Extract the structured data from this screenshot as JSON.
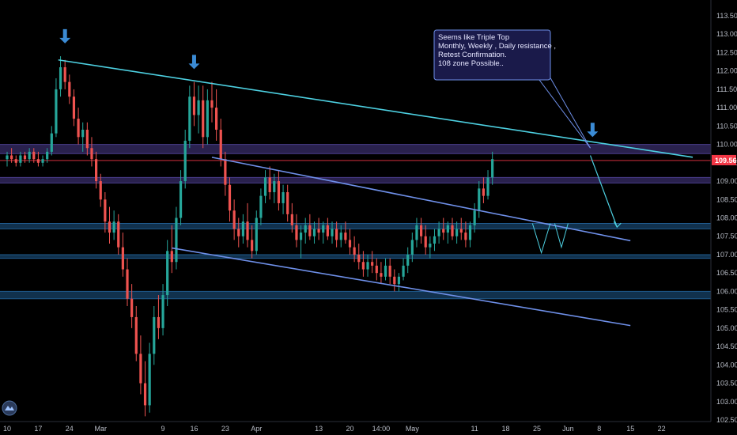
{
  "chart_data": {
    "type": "candlestick",
    "instrument_price_axis": {
      "ylim": [
        102.5,
        113.75
      ],
      "ticks": [
        "113.500",
        "113.000",
        "112.500",
        "112.000",
        "111.500",
        "111.000",
        "110.500",
        "110.000",
        "109.500",
        "109.000",
        "108.500",
        "108.000",
        "107.500",
        "107.000",
        "106.500",
        "106.000",
        "105.500",
        "105.000",
        "104.500",
        "104.000",
        "103.500",
        "103.000",
        "102.500"
      ],
      "tick_values": [
        113.5,
        113.0,
        112.5,
        112.0,
        111.5,
        111.0,
        110.5,
        110.0,
        109.5,
        109.0,
        108.5,
        108.0,
        107.5,
        107.0,
        106.5,
        106.0,
        105.5,
        105.0,
        104.5,
        104.0,
        103.5,
        103.0,
        102.5
      ]
    },
    "time_axis": {
      "labels": [
        "10",
        "17",
        "24",
        "Mar",
        "9",
        "16",
        "23",
        "Apr",
        "13",
        "20",
        "14:00",
        "May",
        "11",
        "18",
        "25",
        "Jun",
        "8",
        "15",
        "22"
      ],
      "bar_index": [
        0,
        7,
        14,
        21,
        35,
        42,
        49,
        56,
        70,
        77,
        84,
        91,
        105,
        112,
        119,
        126,
        133,
        140,
        147
      ],
      "bar_range": [
        0,
        153
      ]
    },
    "current_price": {
      "value": 109.562,
      "label": "109.562",
      "color": "#f23645"
    },
    "candles": [
      [
        0,
        109.6,
        109.8,
        109.4,
        109.7
      ],
      [
        1,
        109.7,
        109.9,
        109.5,
        109.6
      ],
      [
        2,
        109.6,
        109.7,
        109.4,
        109.5
      ],
      [
        3,
        109.5,
        109.8,
        109.4,
        109.7
      ],
      [
        4,
        109.7,
        109.8,
        109.5,
        109.6
      ],
      [
        5,
        109.6,
        109.9,
        109.5,
        109.8
      ],
      [
        6,
        109.8,
        109.9,
        109.5,
        109.6
      ],
      [
        7,
        109.6,
        109.8,
        109.4,
        109.5
      ],
      [
        8,
        109.5,
        109.7,
        109.4,
        109.6
      ],
      [
        9,
        109.6,
        109.9,
        109.5,
        109.8
      ],
      [
        10,
        109.8,
        110.5,
        109.7,
        110.3
      ],
      [
        11,
        110.3,
        111.8,
        110.2,
        111.5
      ],
      [
        12,
        111.5,
        112.4,
        111.3,
        112.1
      ],
      [
        13,
        112.1,
        112.3,
        111.5,
        111.7
      ],
      [
        14,
        111.7,
        111.9,
        111.1,
        111.3
      ],
      [
        15,
        111.3,
        111.5,
        110.5,
        110.7
      ],
      [
        16,
        110.7,
        111.0,
        110.0,
        110.2
      ],
      [
        17,
        110.2,
        110.6,
        109.8,
        110.4
      ],
      [
        18,
        110.4,
        110.6,
        109.7,
        109.9
      ],
      [
        19,
        109.9,
        110.2,
        109.4,
        109.6
      ],
      [
        20,
        109.6,
        109.8,
        108.8,
        109.0
      ],
      [
        21,
        109.0,
        109.2,
        108.3,
        108.5
      ],
      [
        22,
        108.5,
        108.7,
        107.6,
        107.9
      ],
      [
        23,
        107.9,
        108.3,
        107.3,
        107.6
      ],
      [
        24,
        107.6,
        108.2,
        107.4,
        107.9
      ],
      [
        25,
        107.9,
        108.1,
        107.0,
        107.2
      ],
      [
        26,
        107.2,
        107.6,
        106.4,
        106.6
      ],
      [
        27,
        106.6,
        106.9,
        105.6,
        105.8
      ],
      [
        28,
        105.8,
        106.2,
        105.0,
        105.3
      ],
      [
        29,
        105.3,
        105.6,
        104.1,
        104.3
      ],
      [
        30,
        104.3,
        104.8,
        103.2,
        103.5
      ],
      [
        31,
        103.5,
        104.1,
        102.6,
        102.9
      ],
      [
        32,
        102.9,
        104.6,
        102.7,
        104.3
      ],
      [
        33,
        104.3,
        105.6,
        104.0,
        105.3
      ],
      [
        34,
        105.3,
        105.9,
        104.7,
        105.0
      ],
      [
        35,
        105.0,
        106.2,
        104.8,
        105.9
      ],
      [
        36,
        105.9,
        107.4,
        105.6,
        107.1
      ],
      [
        37,
        107.1,
        107.8,
        106.5,
        106.8
      ],
      [
        38,
        106.8,
        108.3,
        106.6,
        108.0
      ],
      [
        39,
        108.0,
        109.3,
        107.8,
        109.0
      ],
      [
        40,
        109.0,
        110.4,
        108.8,
        110.1
      ],
      [
        41,
        110.1,
        111.6,
        109.9,
        111.3
      ],
      [
        42,
        111.3,
        111.7,
        110.5,
        110.8
      ],
      [
        43,
        110.8,
        111.6,
        110.3,
        111.2
      ],
      [
        44,
        111.2,
        111.6,
        109.9,
        110.2
      ],
      [
        45,
        110.2,
        111.5,
        110.0,
        111.2
      ],
      [
        46,
        111.2,
        111.7,
        110.6,
        111.0
      ],
      [
        47,
        111.0,
        111.5,
        110.1,
        110.4
      ],
      [
        48,
        110.4,
        110.7,
        109.4,
        109.6
      ],
      [
        49,
        109.6,
        109.8,
        108.6,
        108.9
      ],
      [
        50,
        108.9,
        109.1,
        107.9,
        108.2
      ],
      [
        51,
        108.2,
        108.5,
        107.4,
        107.7
      ],
      [
        52,
        107.7,
        108.0,
        107.2,
        107.5
      ],
      [
        53,
        107.5,
        108.1,
        107.3,
        107.9
      ],
      [
        54,
        107.9,
        108.4,
        107.2,
        107.4
      ],
      [
        55,
        107.4,
        107.8,
        106.9,
        107.1
      ],
      [
        56,
        107.1,
        108.2,
        107.0,
        108.0
      ],
      [
        57,
        108.0,
        108.8,
        107.8,
        108.6
      ],
      [
        58,
        108.6,
        109.3,
        108.4,
        109.1
      ],
      [
        59,
        109.1,
        109.4,
        108.5,
        108.7
      ],
      [
        60,
        108.7,
        109.2,
        108.4,
        109.0
      ],
      [
        61,
        109.0,
        109.3,
        108.2,
        108.4
      ],
      [
        62,
        108.4,
        108.9,
        108.1,
        108.7
      ],
      [
        63,
        108.7,
        108.9,
        107.9,
        108.1
      ],
      [
        64,
        108.1,
        108.4,
        107.6,
        107.8
      ],
      [
        65,
        107.8,
        108.1,
        107.2,
        107.4
      ],
      [
        66,
        107.4,
        107.8,
        106.9,
        107.6
      ],
      [
        67,
        107.6,
        108.0,
        107.3,
        107.8
      ],
      [
        68,
        107.8,
        108.1,
        107.4,
        107.5
      ],
      [
        69,
        107.5,
        107.9,
        107.3,
        107.7
      ],
      [
        70,
        107.7,
        108.0,
        107.4,
        107.6
      ],
      [
        71,
        107.6,
        107.9,
        107.3,
        107.8
      ],
      [
        72,
        107.8,
        108.0,
        107.4,
        107.5
      ],
      [
        73,
        107.5,
        107.9,
        107.3,
        107.7
      ],
      [
        74,
        107.7,
        107.9,
        107.2,
        107.4
      ],
      [
        75,
        107.4,
        107.8,
        107.2,
        107.6
      ],
      [
        76,
        107.6,
        107.9,
        107.3,
        107.4
      ],
      [
        77,
        107.4,
        107.7,
        107.0,
        107.2
      ],
      [
        78,
        107.2,
        107.5,
        106.8,
        107.0
      ],
      [
        79,
        107.0,
        107.3,
        106.6,
        106.8
      ],
      [
        80,
        106.8,
        107.1,
        106.4,
        106.6
      ],
      [
        81,
        106.6,
        107.0,
        106.4,
        106.8
      ],
      [
        82,
        106.8,
        107.1,
        106.5,
        106.7
      ],
      [
        83,
        106.7,
        106.9,
        106.3,
        106.5
      ],
      [
        84,
        106.5,
        106.8,
        106.2,
        106.4
      ],
      [
        85,
        106.4,
        106.9,
        106.3,
        106.7
      ],
      [
        86,
        106.7,
        106.9,
        106.2,
        106.4
      ],
      [
        87,
        106.4,
        106.6,
        106.0,
        106.2
      ],
      [
        88,
        106.2,
        106.5,
        106.0,
        106.4
      ],
      [
        89,
        106.4,
        106.9,
        106.3,
        106.7
      ],
      [
        90,
        106.7,
        107.2,
        106.5,
        107.0
      ],
      [
        91,
        107.0,
        107.6,
        106.8,
        107.4
      ],
      [
        92,
        107.4,
        108.0,
        107.2,
        107.8
      ],
      [
        93,
        107.8,
        108.0,
        107.3,
        107.5
      ],
      [
        94,
        107.5,
        107.8,
        107.0,
        107.2
      ],
      [
        95,
        107.2,
        107.5,
        106.9,
        107.3
      ],
      [
        96,
        107.3,
        107.7,
        107.1,
        107.5
      ],
      [
        97,
        107.5,
        107.9,
        107.3,
        107.7
      ],
      [
        98,
        107.7,
        108.0,
        107.4,
        107.6
      ],
      [
        99,
        107.6,
        107.9,
        107.3,
        107.8
      ],
      [
        100,
        107.8,
        108.0,
        107.4,
        107.5
      ],
      [
        101,
        107.5,
        107.9,
        107.3,
        107.7
      ],
      [
        102,
        107.7,
        108.0,
        107.4,
        107.6
      ],
      [
        103,
        107.6,
        107.9,
        107.2,
        107.4
      ],
      [
        104,
        107.4,
        107.9,
        107.2,
        107.8
      ],
      [
        105,
        107.8,
        108.4,
        107.6,
        108.2
      ],
      [
        106,
        108.2,
        109.0,
        108.0,
        108.8
      ],
      [
        107,
        108.8,
        109.1,
        108.4,
        108.6
      ],
      [
        108,
        108.6,
        109.3,
        108.5,
        109.1
      ],
      [
        109,
        109.1,
        109.8,
        108.9,
        109.6
      ]
    ],
    "levels": [
      {
        "y_top": 110.0,
        "y_bottom": 109.75,
        "color": "#4a3d8c"
      },
      {
        "y_top": 109.1,
        "y_bottom": 108.95,
        "color": "#4a3d8c"
      },
      {
        "y_top": 107.85,
        "y_bottom": 107.7,
        "color": "#1f5a8c"
      },
      {
        "y_top": 107.0,
        "y_bottom": 106.9,
        "color": "#1f5a8c"
      },
      {
        "y_top": 106.0,
        "y_bottom": 105.8,
        "color": "#1f5a8c"
      }
    ],
    "trendlines": [
      {
        "name": "resistance-line",
        "from": [
          11.5,
          112.3
        ],
        "to": [
          154,
          109.65
        ],
        "color": "#4dd0e1"
      },
      {
        "name": "channel-top",
        "from": [
          46,
          109.65
        ],
        "to": [
          140,
          107.38
        ],
        "color": "#6e8fe8"
      },
      {
        "name": "channel-bottom",
        "from": [
          37,
          107.18
        ],
        "to": [
          140,
          105.07
        ],
        "color": "#6e8fe8"
      }
    ],
    "projection": {
      "from": [
        131,
        109.7
      ],
      "to": [
        137,
        107.75
      ],
      "color": "#4dd0e1"
    },
    "arrows": [
      {
        "name": "top-1",
        "at": [
          13,
          112.75
        ]
      },
      {
        "name": "top-2",
        "at": [
          42,
          112.05
        ]
      },
      {
        "name": "top-3",
        "at": [
          131.5,
          110.2
        ]
      }
    ],
    "annotation": {
      "lines": [
        "Seems like Triple Top",
        "Monthly, Weekly , Daily resistance ,",
        "Retest Confirmation.",
        "108 zone Possible.."
      ]
    },
    "colors": {
      "up": "#26a69a",
      "down": "#ef5350",
      "grid": "#1a1a1a",
      "arrow": "#3b8bd4"
    }
  }
}
